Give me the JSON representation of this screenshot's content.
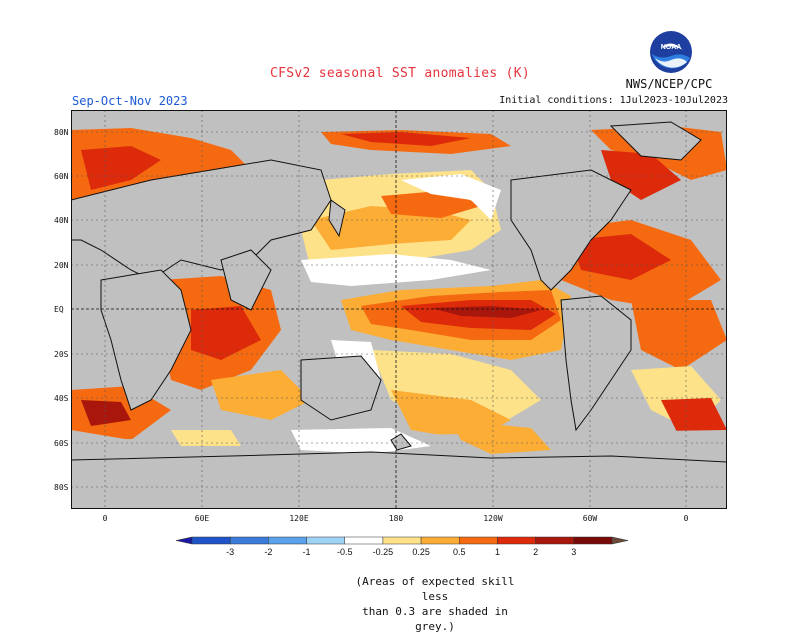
{
  "title": "CFSv2 seasonal SST anomalies (K)",
  "season": "Sep-Oct-Nov 2023",
  "initial_conditions": "Initial conditions: 1Jul2023-10Jul2023",
  "agency": "NWS/NCEP/CPC",
  "logo_text": "NOAA",
  "lat_labels": [
    "80N",
    "60N",
    "40N",
    "20N",
    "EQ",
    "20S",
    "40S",
    "60S",
    "80S"
  ],
  "lon_labels": [
    "0",
    "60E",
    "120E",
    "180",
    "120W",
    "60W",
    "0"
  ],
  "colorbar": {
    "ticks": [
      "-3",
      "-2",
      "-1",
      "-0.5",
      "-0.25",
      "0.25",
      "0.5",
      "1",
      "2",
      "3"
    ],
    "colors": [
      "#1a1aa6",
      "#1f54c8",
      "#3a7ad8",
      "#5aa2ec",
      "#9fd3f5",
      "#ffffff",
      "#fde28a",
      "#fbad36",
      "#f56a10",
      "#dc2a0a",
      "#a8160c",
      "#7a0a08",
      "#6b4a3a"
    ]
  },
  "note_line1": "(Areas of expected skill less",
  "note_line2": "than 0.3 are shaded in grey.)",
  "colors": {
    "land": "#c0c0c0",
    "title": "#e8343c",
    "season": "#1d5bd6"
  }
}
